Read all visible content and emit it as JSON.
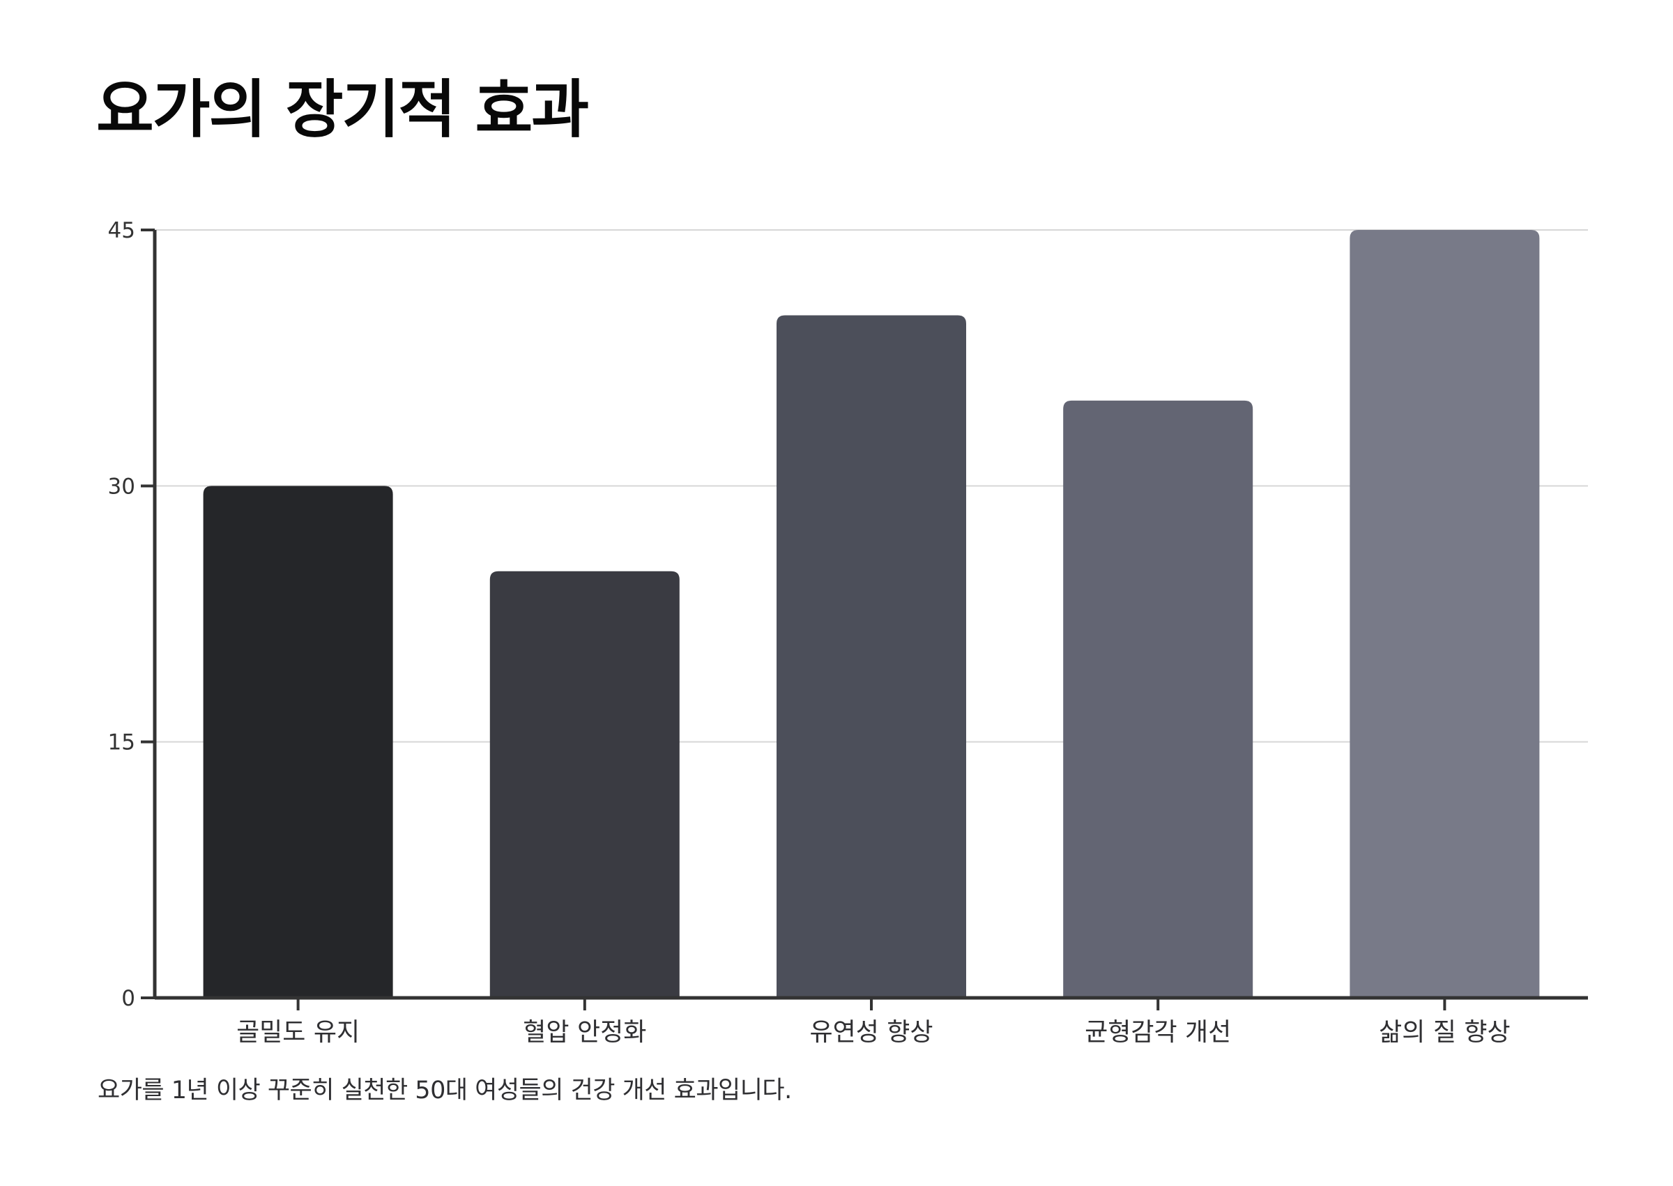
{
  "chart_data": {
    "type": "bar",
    "title": "요가의 장기적 효과",
    "categories": [
      "골밀도 유지",
      "혈압 안정화",
      "유연성 향상",
      "균형감각 개선",
      "삶의 질 향상"
    ],
    "values": [
      30,
      25,
      40,
      35,
      45
    ],
    "colors": [
      "#252629",
      "#3a3b42",
      "#4c4f5a",
      "#636573",
      "#787a88"
    ],
    "ylim": [
      0,
      45
    ],
    "yticks": [
      0,
      15,
      30,
      45
    ],
    "grid": true,
    "caption": "요가를 1년 이상 꾸준히 실천한 50대 여성들의 건강 개선 효과입니다."
  }
}
